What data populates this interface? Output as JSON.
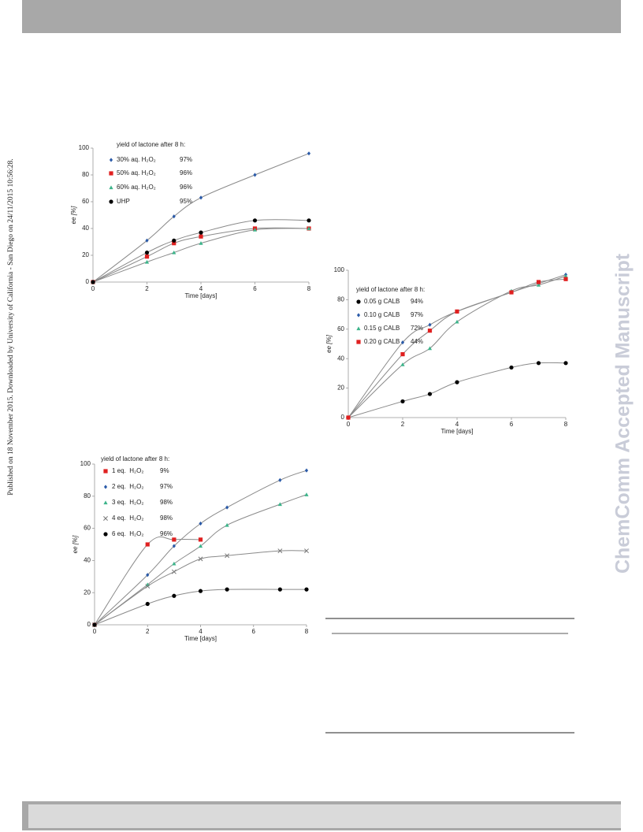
{
  "sidebar": "Published on 18 November 2015. Downloaded by University of California - San Diego on 24/11/2015 10:56:28.",
  "watermark": "ChemComm Accepted Manuscript",
  "chart_data": [
    {
      "type": "scatter",
      "legend_title": "yield of lactone after 8 h:",
      "xlabel": "Time [days]",
      "ylabel": "ee [%]",
      "xlim": [
        0,
        8
      ],
      "xticks": [
        0,
        2,
        4,
        6,
        8
      ],
      "ylim": [
        0,
        100
      ],
      "yticks": [
        0,
        20,
        40,
        60,
        80,
        100
      ],
      "series": [
        {
          "name": "30% aq. H₂O₂",
          "yield_label": "97%",
          "color": "#2a5aa8",
          "marker": "diamond",
          "x": [
            0,
            2,
            3,
            4,
            6,
            8
          ],
          "values": [
            0,
            31,
            49,
            63,
            80,
            96
          ]
        },
        {
          "name": "50% aq. H₂O₂",
          "yield_label": "96%",
          "color": "#e02020",
          "marker": "square",
          "x": [
            0,
            2,
            3,
            4,
            6,
            8
          ],
          "values": [
            0,
            19,
            29,
            34,
            40,
            40
          ]
        },
        {
          "name": "60% aq. H₂O₂",
          "yield_label": "96%",
          "color": "#3cb48a",
          "marker": "triangle",
          "x": [
            0,
            2,
            3,
            4,
            6,
            8
          ],
          "values": [
            0,
            15,
            22,
            29,
            39,
            40
          ]
        },
        {
          "name": "UHP",
          "yield_label": "95%",
          "color": "#000000",
          "marker": "circle",
          "x": [
            0,
            2,
            3,
            4,
            6,
            8
          ],
          "values": [
            0,
            22,
            31,
            37,
            46,
            46
          ]
        }
      ]
    },
    {
      "type": "scatter",
      "legend_title": "yield of lactone after 8 h:",
      "xlabel": "Time [days]",
      "ylabel": "ee [%]",
      "xlim": [
        0,
        8
      ],
      "xticks": [
        0,
        2,
        4,
        6,
        8
      ],
      "ylim": [
        0,
        100
      ],
      "yticks": [
        0,
        20,
        40,
        60,
        80,
        100
      ],
      "series": [
        {
          "name": "0.05 g CALB",
          "yield_label": "94%",
          "color": "#000000",
          "marker": "circle",
          "x": [
            0,
            2,
            3,
            4,
            6,
            7,
            8
          ],
          "values": [
            0,
            11,
            16,
            24,
            34,
            37,
            37
          ]
        },
        {
          "name": "0.10 g CALB",
          "yield_label": "97%",
          "color": "#2a5aa8",
          "marker": "diamond",
          "x": [
            0,
            2,
            3,
            4,
            6,
            7,
            8
          ],
          "values": [
            0,
            51,
            63,
            72,
            85,
            91,
            97
          ]
        },
        {
          "name": "0.15 g CALB",
          "yield_label": "72%",
          "color": "#3cb48a",
          "marker": "triangle",
          "x": [
            0,
            2,
            3,
            4,
            6,
            7,
            8
          ],
          "values": [
            0,
            36,
            47,
            65,
            86,
            90,
            96
          ]
        },
        {
          "name": "0.20 g CALB",
          "yield_label": "44%",
          "color": "#e02020",
          "marker": "square",
          "x": [
            0,
            2,
            3,
            4,
            6,
            7,
            8
          ],
          "values": [
            0,
            43,
            59,
            72,
            85,
            92,
            94
          ]
        }
      ]
    },
    {
      "type": "scatter",
      "legend_title": "yield of lactone after 8 h:",
      "xlabel": "Time [days]",
      "ylabel": "ee [%]",
      "xlim": [
        0,
        8
      ],
      "xticks": [
        0,
        2,
        4,
        6,
        8
      ],
      "ylim": [
        0,
        100
      ],
      "yticks": [
        0,
        20,
        40,
        60,
        80,
        100
      ],
      "series": [
        {
          "name": "1 eq.  H₂O₂",
          "yield_label": "9%",
          "color": "#e02020",
          "marker": "square",
          "x": [
            0,
            2,
            3,
            4
          ],
          "values": [
            0,
            50,
            53,
            53
          ]
        },
        {
          "name": "2 eq.  H₂O₂",
          "yield_label": "97%",
          "color": "#2a5aa8",
          "marker": "diamond",
          "x": [
            0,
            2,
            3,
            4,
            5,
            7,
            8
          ],
          "values": [
            0,
            31,
            49,
            63,
            73,
            90,
            96
          ]
        },
        {
          "name": "3 eq.  H₂O₂",
          "yield_label": "98%",
          "color": "#3cb48a",
          "marker": "triangle",
          "x": [
            0,
            2,
            3,
            4,
            5,
            7,
            8
          ],
          "values": [
            0,
            25,
            38,
            49,
            62,
            75,
            81
          ]
        },
        {
          "name": "4 eq.  H₂O₂",
          "yield_label": "98%",
          "color": "#777777",
          "marker": "cross",
          "x": [
            0,
            2,
            3,
            4,
            5,
            7,
            8
          ],
          "values": [
            0,
            24,
            33,
            41,
            43,
            46,
            46
          ]
        },
        {
          "name": "6 eq.  H₂O₂",
          "yield_label": "96%",
          "color": "#000000",
          "marker": "circle",
          "x": [
            0,
            2,
            3,
            4,
            5,
            7,
            8
          ],
          "values": [
            0,
            13,
            18,
            21,
            22,
            22,
            22
          ]
        }
      ]
    }
  ]
}
